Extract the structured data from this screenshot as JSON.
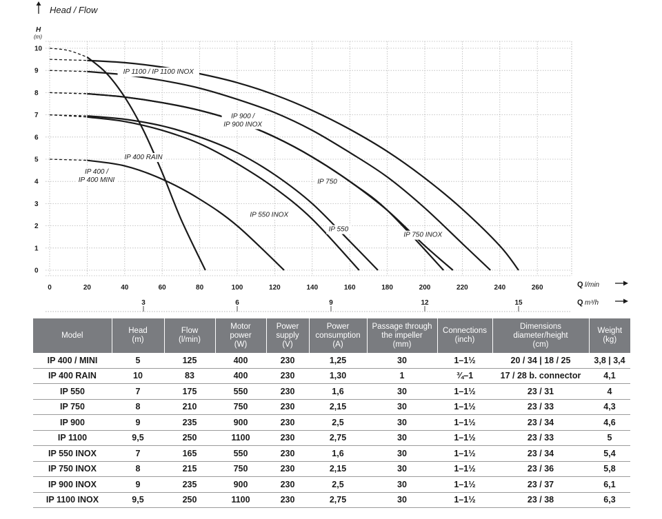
{
  "chart_data": {
    "type": "line",
    "title": "Head / Flow",
    "ylabel": "H",
    "yunit": "(m)",
    "xlabel": "Q",
    "xunit": "l/min",
    "x2label": "Q",
    "x2unit": "m³/h",
    "xlim": [
      0,
      280
    ],
    "ylim": [
      0,
      10.5
    ],
    "xticks": [
      0,
      20,
      40,
      60,
      80,
      100,
      120,
      140,
      160,
      180,
      200,
      220,
      240,
      260
    ],
    "yticks": [
      0,
      1,
      2,
      3,
      4,
      5,
      6,
      7,
      8,
      9,
      10
    ],
    "x2ticks": [
      3,
      6,
      9,
      12,
      15
    ],
    "grid": true,
    "series": [
      {
        "name": "IP 400 RAIN",
        "label": "IP 400 RAIN",
        "x": [
          0,
          10,
          20,
          30,
          40,
          50,
          60,
          70,
          83
        ],
        "y": [
          10,
          9.9,
          9.6,
          8.9,
          7.8,
          6.3,
          4.4,
          2.3,
          0
        ],
        "label_at": [
          50,
          5.0
        ]
      },
      {
        "name": "IP 400 / MINI",
        "label": [
          "IP 400 /",
          "IP 400 MINI"
        ],
        "x": [
          0,
          20,
          40,
          60,
          80,
          100,
          125
        ],
        "y": [
          5,
          4.95,
          4.7,
          4.1,
          3.2,
          2.0,
          0
        ],
        "label_at": [
          25,
          4.35
        ]
      },
      {
        "name": "IP 550",
        "label": "IP 550",
        "x": [
          0,
          20,
          40,
          60,
          80,
          100,
          120,
          140,
          160,
          175
        ],
        "y": [
          7,
          6.95,
          6.8,
          6.5,
          6.0,
          5.3,
          4.3,
          3.0,
          1.3,
          0
        ],
        "label_at": [
          154,
          1.75
        ]
      },
      {
        "name": "IP 550 INOX",
        "label": "IP 550 INOX",
        "x": [
          0,
          20,
          40,
          60,
          80,
          100,
          120,
          140,
          165
        ],
        "y": [
          7,
          6.9,
          6.7,
          6.3,
          5.7,
          4.8,
          3.7,
          2.3,
          0
        ],
        "label_at": [
          117,
          2.4
        ]
      },
      {
        "name": "IP 750",
        "label": "IP 750",
        "x": [
          0,
          20,
          40,
          60,
          80,
          100,
          120,
          140,
          160,
          180,
          210
        ],
        "y": [
          8,
          7.95,
          7.8,
          7.55,
          7.2,
          6.7,
          6.0,
          5.1,
          4.0,
          2.7,
          0
        ],
        "label_at": [
          148,
          3.9
        ]
      },
      {
        "name": "IP 750 INOX",
        "label": "IP 750 INOX",
        "x": [
          0,
          20,
          40,
          60,
          80,
          100,
          120,
          140,
          160,
          180,
          200,
          215
        ],
        "y": [
          8,
          7.95,
          7.8,
          7.55,
          7.2,
          6.7,
          6.0,
          5.1,
          4.0,
          2.7,
          1.1,
          0
        ],
        "label_at": [
          199,
          1.5
        ]
      },
      {
        "name": "IP 900",
        "label": [
          "IP 900 /",
          "IP 900 INOX"
        ],
        "x": [
          0,
          20,
          40,
          60,
          80,
          100,
          120,
          140,
          160,
          180,
          200,
          220,
          235
        ],
        "y": [
          9,
          8.95,
          8.8,
          8.55,
          8.2,
          7.7,
          7.1,
          6.3,
          5.3,
          4.2,
          2.8,
          1.2,
          0
        ],
        "label_at": [
          103,
          6.85
        ]
      },
      {
        "name": "IP 1100",
        "label": "IP 1100 / IP 1100 INOX",
        "x": [
          0,
          20,
          40,
          60,
          80,
          100,
          120,
          140,
          160,
          180,
          200,
          220,
          240,
          250
        ],
        "y": [
          9.5,
          9.45,
          9.35,
          9.15,
          8.85,
          8.45,
          7.9,
          7.2,
          6.35,
          5.35,
          4.15,
          2.75,
          1.1,
          0
        ],
        "label_at": [
          58,
          8.85
        ]
      }
    ]
  },
  "table": {
    "headers": [
      [
        "Model"
      ],
      [
        "Head",
        "(m)"
      ],
      [
        "Flow",
        "(l/min)"
      ],
      [
        "Motor",
        "power",
        "(W)"
      ],
      [
        "Power",
        "supply",
        "(V)"
      ],
      [
        "Power",
        "consumption",
        "(A)"
      ],
      [
        "Passage through",
        "the impeller",
        "(mm)"
      ],
      [
        "Connections",
        "(inch)"
      ],
      [
        "Dimensions",
        "diameter/height",
        "(cm)"
      ],
      [
        "Weight",
        "(kg)"
      ]
    ],
    "rows": [
      [
        "IP 400 / MINI",
        "5",
        "125",
        "400",
        "230",
        "1,25",
        "30",
        "1–1½",
        "20 / 34 | 18 / 25",
        "3,8 | 3,4"
      ],
      [
        "IP 400 RAIN",
        "10",
        "83",
        "400",
        "230",
        "1,30",
        "1",
        "¾–1",
        "17 / 28 b. connector",
        "4,1"
      ],
      [
        "IP 550",
        "7",
        "175",
        "550",
        "230",
        "1,6",
        "30",
        "1–1½",
        "23 / 31",
        "4"
      ],
      [
        "IP 750",
        "8",
        "210",
        "750",
        "230",
        "2,15",
        "30",
        "1–1½",
        "23 / 33",
        "4,3"
      ],
      [
        "IP 900",
        "9",
        "235",
        "900",
        "230",
        "2,5",
        "30",
        "1–1½",
        "23 / 34",
        "4,6"
      ],
      [
        "IP 1100",
        "9,5",
        "250",
        "1100",
        "230",
        "2,75",
        "30",
        "1–1½",
        "23 / 33",
        "5"
      ],
      [
        "IP 550 INOX",
        "7",
        "165",
        "550",
        "230",
        "1,6",
        "30",
        "1–1½",
        "23 / 34",
        "5,4"
      ],
      [
        "IP 750 INOX",
        "8",
        "215",
        "750",
        "230",
        "2,15",
        "30",
        "1–1½",
        "23 / 36",
        "5,8"
      ],
      [
        "IP 900 INOX",
        "9",
        "235",
        "900",
        "230",
        "2,5",
        "30",
        "1–1½",
        "23 / 37",
        "6,1"
      ],
      [
        "IP 1100 INOX",
        "9,5",
        "250",
        "1100",
        "230",
        "2,75",
        "30",
        "1–1½",
        "23 / 38",
        "6,3"
      ]
    ]
  },
  "colors": {
    "curve": "#1a1a1a",
    "grid": "#b5b5b5",
    "table_header_bg": "#7a7c80",
    "table_header_text": "#ffffff"
  }
}
